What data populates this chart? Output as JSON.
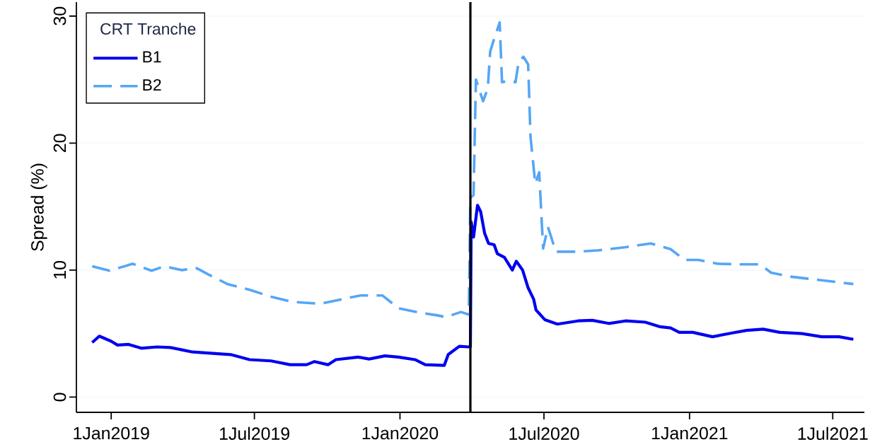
{
  "chart_data": {
    "type": "line",
    "ylabel": "Spread (%)",
    "legend_title": "CRT Tranche",
    "xlim": [
      "2018-11-18",
      "2021-08-10"
    ],
    "ylim": [
      -1.2,
      31.1
    ],
    "xticks": [
      {
        "value": "2019-01-01",
        "label": "1Jan2019"
      },
      {
        "value": "2019-07-01",
        "label": "1Jul2019"
      },
      {
        "value": "2020-01-01",
        "label": "1Jan2020"
      },
      {
        "value": "2020-07-01",
        "label": "1Jul2020"
      },
      {
        "value": "2021-01-01",
        "label": "1Jan2021"
      },
      {
        "value": "2021-07-01",
        "label": "1Jul2021"
      }
    ],
    "yticks": [
      0,
      10,
      20,
      30
    ],
    "grid": "y",
    "legend": "top left",
    "ref_lines": [
      {
        "axis": "x",
        "value": "2020-03-30",
        "color": "#000000",
        "line_style": "solid"
      }
    ],
    "series": [
      {
        "name": "B1",
        "color": "#0000f0",
        "line_style": "solid",
        "x": [
          "2018-12-08",
          "2018-12-17",
          "2019-01-01",
          "2019-01-09",
          "2019-01-23",
          "2019-02-08",
          "2019-02-28",
          "2019-03-17",
          "2019-04-14",
          "2019-05-08",
          "2019-06-01",
          "2019-06-25",
          "2019-07-22",
          "2019-08-15",
          "2019-09-05",
          "2019-09-15",
          "2019-10-02",
          "2019-10-12",
          "2019-11-09",
          "2019-11-23",
          "2019-12-13",
          "2019-12-30",
          "2020-01-20",
          "2020-02-02",
          "2020-02-26",
          "2020-03-02",
          "2020-03-16",
          "2020-03-28",
          "2020-03-30",
          "2020-03-31",
          "2020-04-03",
          "2020-04-08",
          "2020-04-12",
          "2020-04-17",
          "2020-04-22",
          "2020-04-29",
          "2020-05-03",
          "2020-05-12",
          "2020-05-22",
          "2020-05-27",
          "2020-06-04",
          "2020-06-11",
          "2020-06-18",
          "2020-06-21",
          "2020-07-02",
          "2020-07-18",
          "2020-08-13",
          "2020-08-31",
          "2020-09-21",
          "2020-10-12",
          "2020-11-06",
          "2020-11-24",
          "2020-12-08",
          "2020-12-19",
          "2021-01-05",
          "2021-01-30",
          "2021-02-24",
          "2021-03-14",
          "2021-04-04",
          "2021-04-25",
          "2021-05-23",
          "2021-06-17",
          "2021-07-09",
          "2021-07-27"
        ],
        "values": [
          4.3,
          4.8,
          4.4,
          4.1,
          4.15,
          3.85,
          3.95,
          3.9,
          3.55,
          3.45,
          3.35,
          2.95,
          2.85,
          2.55,
          2.55,
          2.8,
          2.55,
          2.95,
          3.15,
          3.0,
          3.25,
          3.15,
          2.95,
          2.55,
          2.5,
          3.35,
          4.0,
          3.95,
          3.95,
          13.8,
          12.6,
          15.1,
          14.6,
          12.9,
          12.1,
          12.0,
          11.3,
          11.0,
          10.0,
          10.7,
          10.0,
          8.6,
          7.7,
          6.85,
          6.1,
          5.75,
          6.0,
          6.05,
          5.8,
          6.0,
          5.9,
          5.55,
          5.45,
          5.1,
          5.1,
          4.75,
          5.05,
          5.25,
          5.35,
          5.1,
          5.0,
          4.75,
          4.75,
          4.55
        ]
      },
      {
        "name": "B2",
        "color": "#55a6f5",
        "line_style": "dashed",
        "x": [
          "2018-12-08",
          "2018-12-30",
          "2019-01-28",
          "2019-02-21",
          "2019-03-09",
          "2019-03-31",
          "2019-04-19",
          "2019-05-04",
          "2019-05-28",
          "2019-06-25",
          "2019-07-22",
          "2019-08-18",
          "2019-09-22",
          "2019-10-19",
          "2019-11-12",
          "2019-12-10",
          "2019-12-30",
          "2020-01-26",
          "2020-02-16",
          "2020-02-28",
          "2020-03-18",
          "2020-03-28",
          "2020-03-30",
          "2020-04-03",
          "2020-04-06",
          "2020-04-15",
          "2020-04-21",
          "2020-04-24",
          "2020-04-29",
          "2020-05-06",
          "2020-05-09",
          "2020-05-17",
          "2020-05-26",
          "2020-05-30",
          "2020-06-05",
          "2020-06-11",
          "2020-06-14",
          "2020-06-20",
          "2020-06-25",
          "2020-06-28",
          "2020-06-30",
          "2020-07-06",
          "2020-07-16",
          "2020-08-10",
          "2020-09-07",
          "2020-10-12",
          "2020-11-13",
          "2020-12-08",
          "2020-12-26",
          "2021-01-12",
          "2021-02-06",
          "2021-03-10",
          "2021-03-31",
          "2021-04-14",
          "2021-05-06",
          "2021-06-10",
          "2021-07-27"
        ],
        "values": [
          10.3,
          9.95,
          10.5,
          9.95,
          10.3,
          10.0,
          10.15,
          9.65,
          8.9,
          8.45,
          7.9,
          7.5,
          7.35,
          7.7,
          8.0,
          8.0,
          7.0,
          6.65,
          6.45,
          6.3,
          6.7,
          6.5,
          15.7,
          15.9,
          25.0,
          23.3,
          24.3,
          27.2,
          28.2,
          29.5,
          24.8,
          24.9,
          24.8,
          26.4,
          26.8,
          26.2,
          20.5,
          16.8,
          17.7,
          14.0,
          11.7,
          13.4,
          11.45,
          11.45,
          11.55,
          11.8,
          12.1,
          11.65,
          10.8,
          10.8,
          10.5,
          10.45,
          10.45,
          9.8,
          9.5,
          9.25,
          8.9
        ]
      }
    ]
  }
}
